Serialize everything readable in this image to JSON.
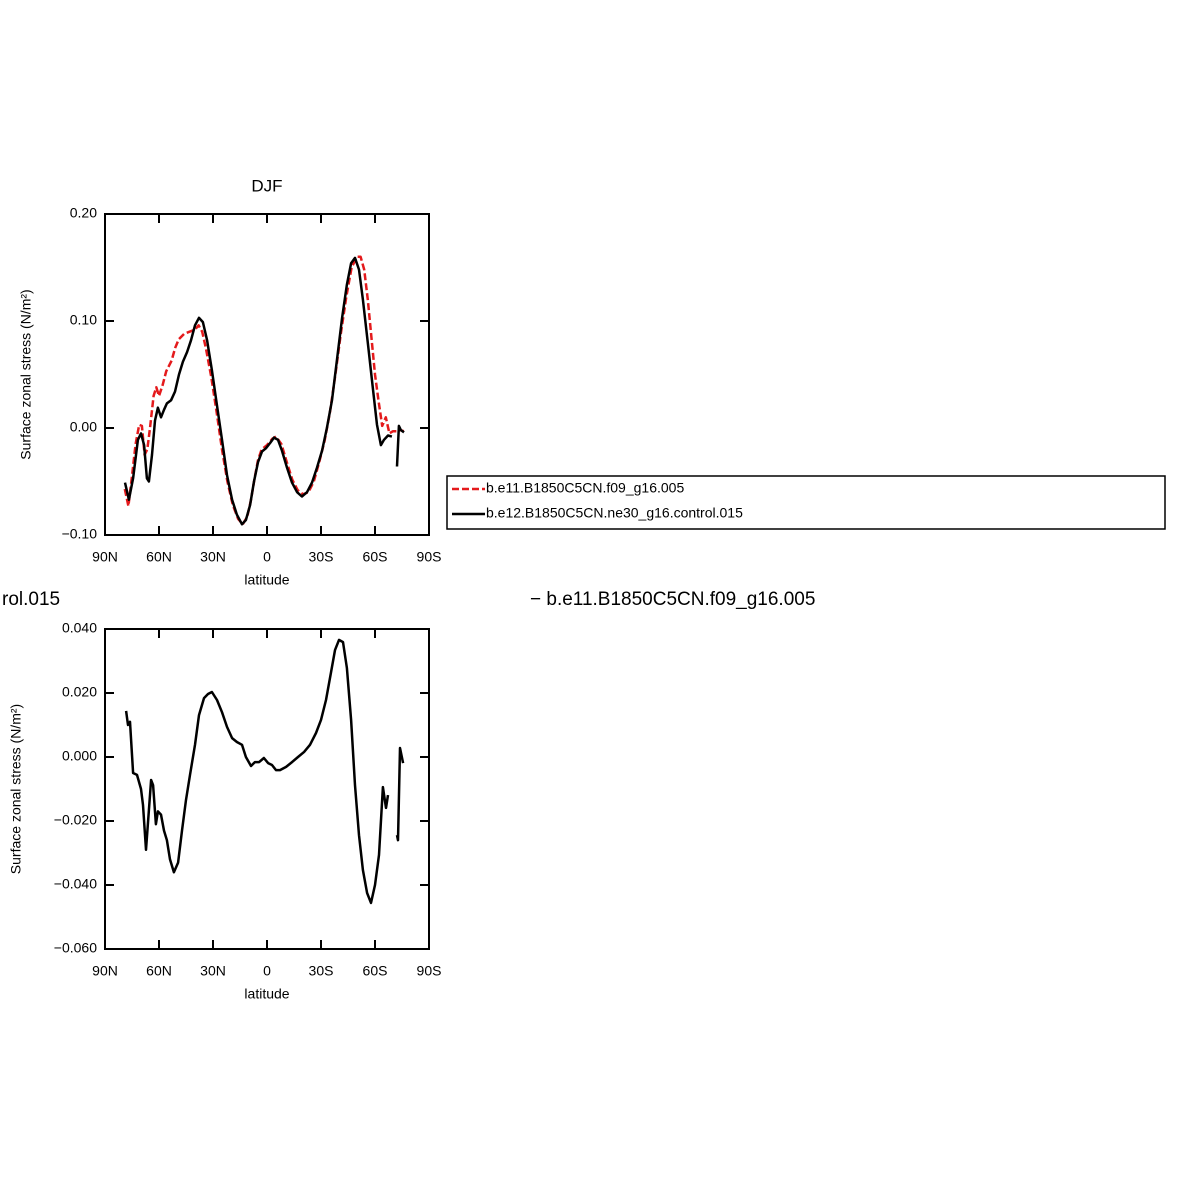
{
  "chart_data": [
    {
      "type": "line",
      "title": "DJF",
      "ylabel": "Surface zonal stress (N/m²)",
      "xlabel": "latitude",
      "xlim": [
        90,
        -90
      ],
      "xticks": [
        {
          "value": 90,
          "label": "90N"
        },
        {
          "value": 60,
          "label": "60N"
        },
        {
          "value": 30,
          "label": "30N"
        },
        0,
        {
          "value": -30,
          "label": "30S"
        },
        {
          "value": -60,
          "label": "60S"
        },
        {
          "value": -90,
          "label": "90S"
        }
      ],
      "ylim": [
        -0.1,
        0.2
      ],
      "yticks": [
        {
          "value": 0.2,
          "label": "0.20"
        },
        {
          "value": 0.1,
          "label": "0.10"
        },
        {
          "value": 0,
          "label": "0.00"
        },
        {
          "value": -0.1,
          "label": "−0.10"
        }
      ],
      "legend": "right",
      "series": [
        {
          "name": "b.e11.B1850C5CN.f09_g16.005",
          "color": "#e41a1c",
          "dashed": true,
          "x": [
            79,
            77,
            75,
            73,
            71,
            69.5,
            68,
            66.5,
            65,
            63,
            61.5,
            60,
            58,
            56,
            53,
            51,
            49,
            46,
            43,
            40,
            38,
            36,
            34,
            31,
            28,
            25,
            22,
            19,
            16,
            13.5,
            11,
            9,
            7,
            5,
            3,
            0,
            -3,
            -5,
            -8,
            -11,
            -14,
            -17,
            -20,
            -23,
            -26,
            -29,
            -32,
            -35,
            -38,
            -41,
            -44,
            -47,
            -50,
            -52,
            -54,
            -56,
            -58,
            -60,
            -62,
            -64,
            -66,
            -68,
            -70,
            -72,
            -74,
            -76
          ],
          "values": [
            -0.057,
            -0.073,
            -0.045,
            -0.015,
            0.003,
            0.002,
            -0.025,
            -0.02,
            0.0,
            0.03,
            0.038,
            0.03,
            0.04,
            0.053,
            0.063,
            0.075,
            0.083,
            0.088,
            0.09,
            0.092,
            0.096,
            0.09,
            0.075,
            0.048,
            0.015,
            -0.02,
            -0.05,
            -0.072,
            -0.085,
            -0.09,
            -0.083,
            -0.068,
            -0.048,
            -0.03,
            -0.02,
            -0.016,
            -0.01,
            -0.008,
            -0.015,
            -0.032,
            -0.048,
            -0.058,
            -0.062,
            -0.06,
            -0.05,
            -0.032,
            -0.012,
            0.015,
            0.05,
            0.088,
            0.122,
            0.15,
            0.16,
            0.16,
            0.148,
            0.12,
            0.085,
            0.05,
            0.025,
            0.002,
            0.01,
            -0.005,
            -0.003,
            -0.003,
            -0.002,
            -0.003
          ]
        },
        {
          "name": "b.e12.B1850C5CN.ne30_g16.control.015",
          "color": "#000000",
          "dashed": false,
          "x": [
            78.9,
            76.7,
            74.4,
            71.7,
            70,
            68.3,
            66.7,
            65.6,
            63.9,
            62.2,
            60.6,
            58.9,
            57.2,
            55.6,
            53.3,
            51.1,
            48.9,
            46.7,
            44.4,
            42.2,
            40,
            37.8,
            35.6,
            33.3,
            30.6,
            27.8,
            25,
            22.2,
            19.4,
            16.7,
            13.9,
            11.7,
            9.4,
            7.2,
            5,
            2.8,
            0.6,
            -1.7,
            -3.9,
            -6.1,
            -8.3,
            -11.1,
            -13.9,
            -16.7,
            -19.4,
            -22.2,
            -25,
            -27.8,
            -30.6,
            -33.3,
            -36.1,
            -38.9,
            -41.7,
            -44.4,
            -46.7,
            -48.9,
            -51.1,
            -53.3,
            -56.1,
            -58.9,
            -61.1,
            -63.3,
            -65,
            -67.2,
            -69.4,
            -70.8,
            -72.2,
            -73.3,
            -74.4,
            -76.1
          ],
          "values": [
            -0.051,
            -0.067,
            -0.047,
            -0.011,
            -0.005,
            -0.016,
            -0.047,
            -0.05,
            -0.025,
            0.007,
            0.019,
            0.01,
            0.017,
            0.023,
            0.026,
            0.034,
            0.05,
            0.062,
            0.071,
            0.082,
            0.096,
            0.103,
            0.099,
            0.082,
            0.054,
            0.021,
            -0.011,
            -0.044,
            -0.067,
            -0.081,
            -0.09,
            -0.086,
            -0.072,
            -0.05,
            -0.032,
            -0.022,
            -0.019,
            -0.014,
            -0.009,
            -0.011,
            -0.021,
            -0.037,
            -0.051,
            -0.06,
            -0.064,
            -0.06,
            -0.051,
            -0.037,
            -0.021,
            0.0,
            0.026,
            0.064,
            0.103,
            0.134,
            0.154,
            0.159,
            0.148,
            0.12,
            0.078,
            0.036,
            0.003,
            -0.016,
            -0.011,
            -0.007,
            -0.008,
            null,
            -0.036,
            0.002,
            -0.002,
            -0.004
          ]
        }
      ]
    },
    {
      "type": "line",
      "ylabel": "Surface zonal stress (N/m²)",
      "xlabel": "latitude",
      "annotations": [
        "rol.015",
        "− b.e11.B1850C5CN.f09_g16.005"
      ],
      "xlim": [
        90,
        -90
      ],
      "xticks": [
        {
          "value": 90,
          "label": "90N"
        },
        {
          "value": 60,
          "label": "60N"
        },
        {
          "value": 30,
          "label": "30N"
        },
        0,
        {
          "value": -30,
          "label": "30S"
        },
        {
          "value": -60,
          "label": "60S"
        },
        {
          "value": -90,
          "label": "90S"
        }
      ],
      "ylim": [
        -0.06,
        0.04
      ],
      "yticks": [
        {
          "value": 0.04,
          "label": "0.040"
        },
        {
          "value": 0.02,
          "label": "0.020"
        },
        {
          "value": 0,
          "label": "0.000"
        },
        {
          "value": -0.02,
          "label": "−0.020"
        },
        {
          "value": -0.04,
          "label": "−0.040"
        },
        {
          "value": -0.06,
          "label": "−0.060"
        }
      ],
      "series": [
        {
          "color": "#000000",
          "dashed": false,
          "x": [
            78.3,
            77.2,
            76.1,
            74.4,
            72.2,
            70,
            68.9,
            67.2,
            65.6,
            64.4,
            63.3,
            61.7,
            60.6,
            58.9,
            57.2,
            55.6,
            53.9,
            51.7,
            49.4,
            47.2,
            45,
            42.8,
            40,
            37.8,
            35,
            32.8,
            30.6,
            27.8,
            25,
            22.2,
            19.4,
            16.7,
            13.9,
            11.7,
            8.9,
            6.7,
            4.4,
            1.7,
            -0.6,
            -2.8,
            -5,
            -7.2,
            -10.6,
            -13.9,
            -17.2,
            -20.6,
            -23.9,
            -27.2,
            -30,
            -32.8,
            -35.6,
            -37.8,
            -40,
            -42.2,
            -44.4,
            -46.7,
            -48.9,
            -51.1,
            -53.3,
            -55.6,
            -57.8,
            -60,
            -62.2,
            -64.4,
            -66.1,
            -67.2,
            -70,
            -72.2,
            -72.8,
            -73.9,
            -75.6
          ],
          "values": [
            0.0144,
            0.01,
            0.011,
            -0.005,
            -0.0056,
            -0.01,
            -0.015,
            -0.029,
            -0.0166,
            -0.0072,
            -0.0088,
            -0.021,
            -0.017,
            -0.018,
            -0.023,
            -0.026,
            -0.032,
            -0.036,
            -0.033,
            -0.023,
            -0.0134,
            -0.0056,
            0.0038,
            0.0131,
            0.0184,
            0.0197,
            0.0203,
            0.0178,
            0.014,
            0.0094,
            0.0059,
            0.0047,
            0.0038,
            0.0,
            -0.0028,
            -0.0016,
            -0.0016,
            -0.0003,
            -0.0019,
            -0.0025,
            -0.0041,
            -0.0041,
            -0.0031,
            -0.0016,
            0.0,
            0.0016,
            0.0038,
            0.0075,
            0.0116,
            0.0178,
            0.0266,
            0.0334,
            0.0366,
            0.0359,
            0.0278,
            0.0116,
            -0.0088,
            -0.0244,
            -0.0353,
            -0.0425,
            -0.0456,
            -0.04,
            -0.0306,
            -0.0094,
            -0.0159,
            -0.0119,
            null,
            -0.0244,
            -0.026,
            0.0028,
            -0.0019
          ]
        }
      ]
    }
  ]
}
